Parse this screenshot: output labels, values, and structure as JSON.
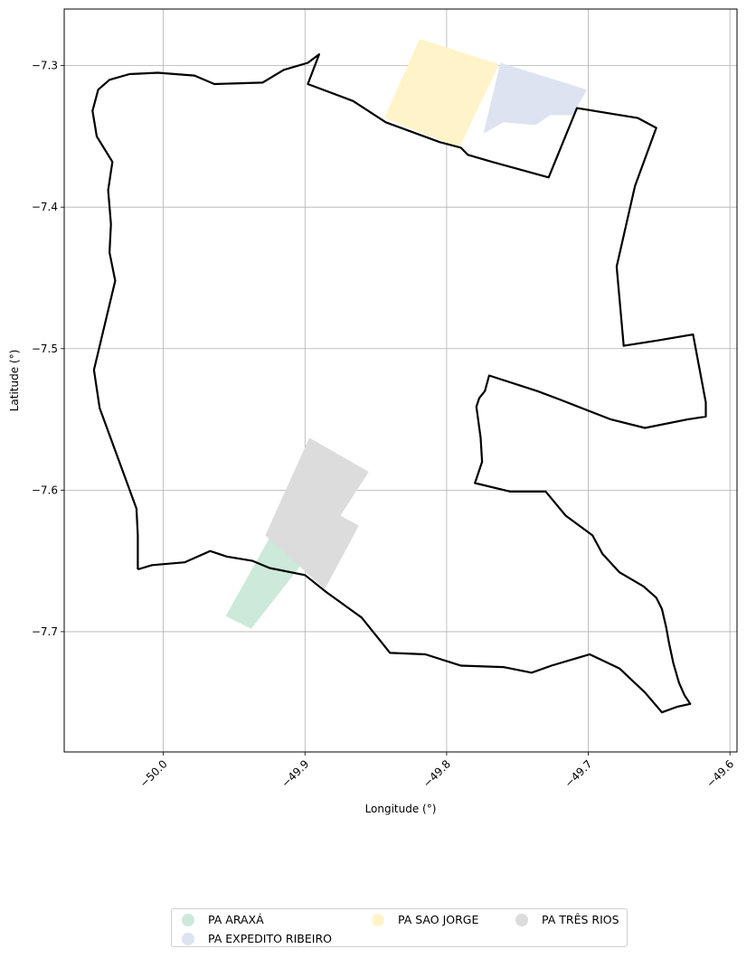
{
  "chart_data": {
    "type": "map",
    "title": "",
    "xlabel": "Longitude (°)",
    "ylabel": "Latitude (°)",
    "xlim": [
      -50.07,
      -49.595
    ],
    "ylim": [
      -7.785,
      -7.26
    ],
    "xticks": [
      -50.0,
      -49.9,
      -49.8,
      -49.7,
      -49.6
    ],
    "xtick_labels": [
      "−50.0",
      "−49.9",
      "−49.8",
      "−49.7",
      "−49.6"
    ],
    "yticks": [
      -7.3,
      -7.4,
      -7.5,
      -7.6,
      -7.7
    ],
    "ytick_labels": [
      "−7.3",
      "−7.4",
      "−7.5",
      "−7.6",
      "−7.7"
    ],
    "grid": true,
    "legend_position": "bottom-center",
    "boundary": {
      "color": "#000000",
      "points": [
        [
          -50.018,
          -7.656
        ],
        [
          -50.018,
          -7.632
        ],
        [
          -50.019,
          -7.613
        ],
        [
          -50.045,
          -7.542
        ],
        [
          -50.049,
          -7.515
        ],
        [
          -50.034,
          -7.452
        ],
        [
          -50.038,
          -7.432
        ],
        [
          -50.037,
          -7.412
        ],
        [
          -50.039,
          -7.388
        ],
        [
          -50.036,
          -7.368
        ],
        [
          -50.047,
          -7.35
        ],
        [
          -50.05,
          -7.332
        ],
        [
          -50.046,
          -7.317
        ],
        [
          -50.038,
          -7.31
        ],
        [
          -50.024,
          -7.306
        ],
        [
          -50.004,
          -7.305
        ],
        [
          -49.978,
          -7.307
        ],
        [
          -49.964,
          -7.313
        ],
        [
          -49.93,
          -7.312
        ],
        [
          -49.915,
          -7.303
        ],
        [
          -49.898,
          -7.298
        ],
        [
          -49.89,
          -7.292
        ],
        [
          -49.898,
          -7.313
        ],
        [
          -49.866,
          -7.325
        ],
        [
          -49.843,
          -7.34
        ],
        [
          -49.805,
          -7.354
        ],
        [
          -49.79,
          -7.358
        ],
        [
          -49.785,
          -7.363
        ],
        [
          -49.768,
          -7.368
        ],
        [
          -49.728,
          -7.379
        ],
        [
          -49.708,
          -7.33
        ],
        [
          -49.665,
          -7.337
        ],
        [
          -49.652,
          -7.344
        ],
        [
          -49.667,
          -7.385
        ],
        [
          -49.68,
          -7.442
        ],
        [
          -49.675,
          -7.498
        ],
        [
          -49.65,
          -7.494
        ],
        [
          -49.626,
          -7.49
        ],
        [
          -49.617,
          -7.538
        ],
        [
          -49.617,
          -7.548
        ],
        [
          -49.63,
          -7.55
        ],
        [
          -49.66,
          -7.556
        ],
        [
          -49.684,
          -7.55
        ],
        [
          -49.72,
          -7.536
        ],
        [
          -49.736,
          -7.53
        ],
        [
          -49.77,
          -7.519
        ],
        [
          -49.773,
          -7.53
        ],
        [
          -49.777,
          -7.535
        ],
        [
          -49.779,
          -7.541
        ],
        [
          -49.776,
          -7.563
        ],
        [
          -49.775,
          -7.58
        ],
        [
          -49.78,
          -7.595
        ],
        [
          -49.755,
          -7.601
        ],
        [
          -49.73,
          -7.601
        ],
        [
          -49.716,
          -7.618
        ],
        [
          -49.697,
          -7.632
        ],
        [
          -49.69,
          -7.645
        ],
        [
          -49.678,
          -7.658
        ],
        [
          -49.661,
          -7.668
        ],
        [
          -49.652,
          -7.676
        ],
        [
          -49.648,
          -7.684
        ],
        [
          -49.645,
          -7.697
        ],
        [
          -49.643,
          -7.708
        ],
        [
          -49.64,
          -7.722
        ],
        [
          -49.636,
          -7.736
        ],
        [
          -49.632,
          -7.745
        ],
        [
          -49.628,
          -7.751
        ],
        [
          -49.637,
          -7.753
        ],
        [
          -49.648,
          -7.757
        ],
        [
          -49.66,
          -7.743
        ],
        [
          -49.678,
          -7.726
        ],
        [
          -49.699,
          -7.716
        ],
        [
          -49.726,
          -7.724
        ],
        [
          -49.74,
          -7.729
        ],
        [
          -49.76,
          -7.725
        ],
        [
          -49.79,
          -7.724
        ],
        [
          -49.815,
          -7.716
        ],
        [
          -49.84,
          -7.715
        ],
        [
          -49.86,
          -7.69
        ],
        [
          -49.885,
          -7.672
        ],
        [
          -49.9,
          -7.66
        ],
        [
          -49.925,
          -7.655
        ],
        [
          -49.937,
          -7.65
        ],
        [
          -49.955,
          -7.647
        ],
        [
          -49.967,
          -7.643
        ],
        [
          -49.985,
          -7.651
        ],
        [
          -50.008,
          -7.653
        ],
        [
          -50.018,
          -7.656
        ]
      ]
    },
    "regions": [
      {
        "name": "PA ARAXÁ",
        "color": "#cce9d9",
        "points": [
          [
            -49.956,
            -7.689
          ],
          [
            -49.924,
            -7.632
          ],
          [
            -49.902,
            -7.652
          ],
          [
            -49.938,
            -7.698
          ]
        ]
      },
      {
        "name": "PA EXPEDITO RIBEIRO",
        "color": "#dde3f1",
        "points": [
          [
            -49.762,
            -7.298
          ],
          [
            -49.701,
            -7.317
          ],
          [
            -49.711,
            -7.335
          ],
          [
            -49.727,
            -7.335
          ],
          [
            -49.737,
            -7.342
          ],
          [
            -49.76,
            -7.34
          ],
          [
            -49.774,
            -7.348
          ]
        ]
      },
      {
        "name": "PA SAO JORGE",
        "color": "#fff4c9",
        "points": [
          [
            -49.819,
            -7.281
          ],
          [
            -49.763,
            -7.299
          ],
          [
            -49.791,
            -7.358
          ],
          [
            -49.844,
            -7.337
          ]
        ]
      },
      {
        "name": "PA TRÊS RIOS",
        "color": "#dcdcdc",
        "points": [
          [
            -49.897,
            -7.563
          ],
          [
            -49.855,
            -7.587
          ],
          [
            -49.875,
            -7.618
          ],
          [
            -49.862,
            -7.625
          ],
          [
            -49.886,
            -7.67
          ],
          [
            -49.928,
            -7.632
          ]
        ]
      }
    ]
  },
  "legend": {
    "items": [
      {
        "label": "PA ARAXÁ",
        "color": "#cce9d9"
      },
      {
        "label": "PA EXPEDITO RIBEIRO",
        "color": "#dde3f1"
      },
      {
        "label": "PA SAO JORGE",
        "color": "#fff4c9"
      },
      {
        "label": "PA TRÊS RIOS",
        "color": "#dcdcdc"
      }
    ]
  }
}
